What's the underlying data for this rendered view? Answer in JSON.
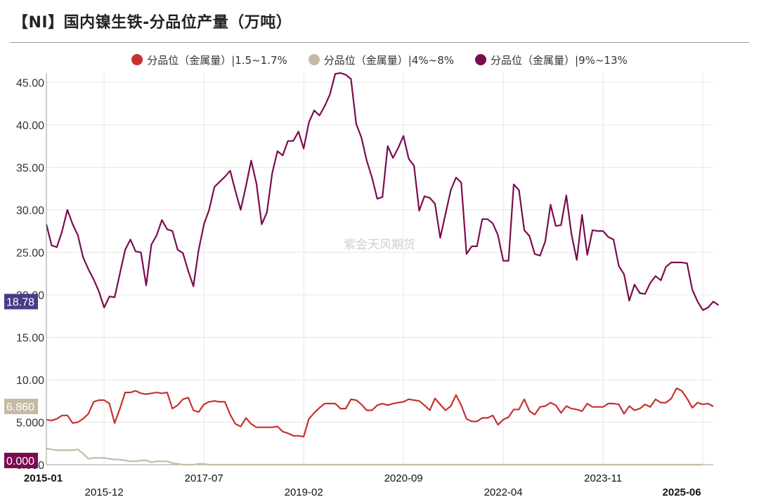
{
  "title": "【NI】国内镍生铁-分品位产量（万吨）",
  "watermark": "紫金天风期货",
  "chart_data": {
    "type": "line",
    "ylim": [
      0,
      45
    ],
    "yticks": [
      0,
      5,
      10,
      15,
      20,
      25,
      30,
      35,
      40,
      45
    ],
    "ytick_labels": [
      "0.000",
      "5.000",
      "10.00",
      "15.00",
      "20.00",
      "25.00",
      "30.00",
      "35.00",
      "40.00",
      "45.00"
    ],
    "x_start": "2015-01",
    "x_end": "2025-06",
    "xtick_labels": [
      "2015-01",
      "2015-12",
      "2017-07",
      "2019-02",
      "2020-09",
      "2022-04",
      "2023-11",
      "2025-06"
    ],
    "xtick_positions": [
      0,
      11,
      30,
      49,
      68,
      87,
      106,
      125
    ],
    "grid": true,
    "legend_position": "top-center",
    "series": [
      {
        "name": "分品位（金属量）|1.5~1.7%",
        "color": "#c8312f",
        "last_label": "6.860",
        "label_bg": "#c6b9a6",
        "values": [
          5.3,
          5.2,
          5.4,
          5.8,
          5.8,
          4.9,
          5.0,
          5.4,
          6.0,
          7.4,
          7.6,
          7.6,
          7.2,
          4.9,
          6.6,
          8.5,
          8.5,
          8.7,
          8.4,
          8.3,
          8.4,
          8.5,
          8.4,
          8.5,
          6.6,
          7.0,
          7.7,
          7.9,
          6.4,
          6.2,
          7.1,
          7.4,
          7.5,
          7.4,
          7.4,
          5.9,
          4.8,
          4.5,
          5.5,
          4.8,
          4.4,
          4.4,
          4.4,
          4.4,
          4.5,
          3.9,
          3.7,
          3.4,
          3.4,
          3.3,
          5.4,
          6.1,
          6.7,
          7.2,
          7.2,
          7.2,
          6.6,
          6.6,
          7.7,
          7.6,
          7.1,
          6.4,
          6.4,
          7.0,
          7.2,
          7.0,
          7.2,
          7.3,
          7.4,
          7.7,
          7.6,
          7.5,
          7.0,
          6.4,
          7.8,
          7.1,
          6.4,
          6.9,
          8.2,
          7.0,
          5.4,
          5.1,
          5.1,
          5.5,
          5.5,
          5.8,
          4.7,
          5.3,
          5.6,
          6.5,
          6.5,
          7.7,
          6.3,
          5.9,
          6.8,
          6.9,
          7.3,
          7.0,
          6.1,
          6.9,
          6.6,
          6.5,
          6.3,
          7.2,
          6.8,
          6.8,
          6.8,
          7.2,
          7.2,
          7.1,
          6.0,
          6.9,
          6.4,
          6.6,
          7.1,
          6.8,
          7.7,
          7.3,
          7.3,
          7.8,
          9.0,
          8.7,
          7.8,
          6.7,
          7.3,
          7.1,
          7.2,
          6.86
        ]
      },
      {
        "name": "分品位（金属量）|4%~8%",
        "color": "#c6b9a6",
        "values": [
          1.9,
          1.8,
          1.7,
          1.7,
          1.7,
          1.7,
          1.8,
          1.3,
          0.7,
          0.8,
          0.8,
          0.8,
          0.7,
          0.6,
          0.6,
          0.5,
          0.4,
          0.4,
          0.5,
          0.5,
          0.3,
          0.4,
          0.4,
          0.4,
          0.2,
          0.1,
          0.0,
          0.0,
          0.0,
          0.1,
          0.1,
          0.0,
          0.0,
          0.0,
          0.0,
          0.0,
          0.0,
          0.0,
          0.0,
          0.0,
          0.0,
          0.0,
          0.0,
          0.0,
          0.0,
          0.0,
          0.0,
          0.0,
          0.0,
          0.0,
          0.0,
          0.0,
          0.0,
          0.0,
          0.0,
          0.0,
          0.0,
          0.0,
          0.0,
          0.0,
          0.0,
          0.0,
          0.0,
          0.0,
          0.0,
          0.0,
          0.0,
          0.0,
          0.0,
          0.0,
          0.0,
          0.0,
          0.0,
          0.0,
          0.0,
          0.0,
          0.0,
          0.0,
          0.0,
          0.0,
          0.0,
          0.0,
          0.0,
          0.0,
          0.0,
          0.0,
          0.0,
          0.0,
          0.0,
          0.0,
          0.0,
          0.0,
          0.0,
          0.0,
          0.0,
          0.0,
          0.0,
          0.0,
          0.0,
          0.0,
          0.0,
          0.0,
          0.0,
          0.0,
          0.0,
          0.0,
          0.0,
          0.0,
          0.0,
          0.0,
          0.0,
          0.0,
          0.0,
          0.0,
          0.0,
          0.0,
          0.0,
          0.0,
          0.0,
          0.0,
          0.0,
          0.0,
          0.0,
          0.0,
          0.0,
          0.0
        ]
      },
      {
        "name": "分品位（金属量）|9%~13%",
        "color": "#7b0c4f",
        "last_label": "18.78",
        "label_bg": "#4b3a8a",
        "values": [
          28.3,
          25.8,
          25.6,
          27.5,
          30.0,
          28.3,
          27.0,
          24.4,
          23.0,
          21.8,
          20.4,
          18.5,
          19.8,
          19.7,
          22.5,
          25.3,
          26.5,
          25.1,
          25.0,
          21.1,
          25.9,
          27.0,
          28.8,
          27.7,
          27.5,
          25.3,
          24.9,
          22.8,
          21.0,
          25.3,
          28.3,
          30.0,
          32.7,
          33.3,
          33.9,
          34.6,
          32.2,
          30.0,
          32.8,
          35.8,
          33.1,
          28.3,
          29.7,
          34.3,
          36.9,
          36.4,
          38.1,
          38.1,
          39.2,
          37.2,
          40.3,
          41.7,
          41.1,
          42.2,
          43.6,
          46.0,
          46.1,
          45.9,
          45.4,
          40.1,
          38.5,
          35.8,
          33.8,
          31.3,
          31.5,
          37.5,
          36.1,
          37.3,
          38.7,
          36.0,
          35.2,
          29.9,
          31.6,
          31.4,
          30.7,
          26.7,
          29.5,
          32.3,
          33.8,
          33.2,
          24.8,
          25.7,
          25.7,
          28.9,
          28.9,
          28.4,
          27.0,
          24.0,
          24.0,
          33.0,
          32.3,
          27.6,
          26.9,
          24.8,
          24.6,
          26.3,
          30.6,
          28.1,
          28.2,
          31.7,
          27.1,
          24.1,
          29.4,
          24.7,
          27.6,
          27.5,
          27.5,
          26.8,
          26.5,
          23.4,
          22.4,
          19.3,
          21.2,
          20.2,
          20.1,
          21.4,
          22.2,
          21.7,
          23.3,
          23.8,
          23.8,
          23.8,
          23.7,
          20.6,
          19.2,
          18.2,
          18.5,
          19.2,
          18.78
        ]
      }
    ]
  }
}
